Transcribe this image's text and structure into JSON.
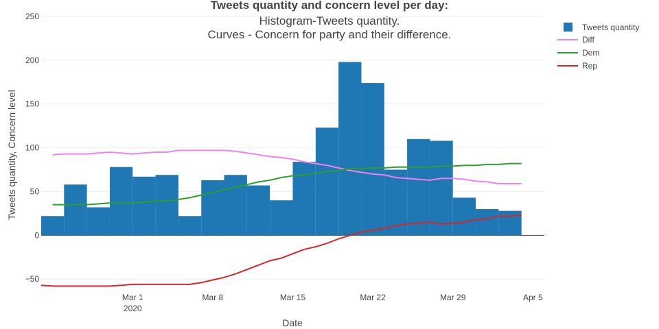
{
  "chart_data": {
    "type": "bar",
    "title_lines": [
      "Tweets quantity and concern level per day:",
      "Histogram-Tweets quantity.",
      "Curves - Concern for party and their difference."
    ],
    "xlabel": "Date",
    "ylabel": "Tweets quantity, Concern level",
    "ylim": [
      -60,
      250
    ],
    "yticks": [
      -50,
      0,
      50,
      100,
      150,
      200,
      250
    ],
    "ytick_labels": [
      "−50",
      "0",
      "50",
      "100",
      "150",
      "200",
      "250"
    ],
    "xlim": [
      "2020-02-22",
      "2020-04-06"
    ],
    "xticks": [
      {
        "date": "2020-03-01",
        "label": "Mar 1",
        "sublabel": "2020"
      },
      {
        "date": "2020-03-08",
        "label": "Mar 8",
        "sublabel": ""
      },
      {
        "date": "2020-03-15",
        "label": "Mar 15",
        "sublabel": ""
      },
      {
        "date": "2020-03-22",
        "label": "Mar 22",
        "sublabel": ""
      },
      {
        "date": "2020-03-29",
        "label": "Mar 29",
        "sublabel": ""
      },
      {
        "date": "2020-04-05",
        "label": "Apr 5",
        "sublabel": ""
      }
    ],
    "grid": true,
    "legend_position": "top-right",
    "histogram": {
      "name": "Tweets quantity",
      "color": "#1f77b4",
      "bins": [
        {
          "start": "2020-02-22",
          "end": "2020-02-24",
          "value": 22
        },
        {
          "start": "2020-02-24",
          "end": "2020-02-26",
          "value": 58
        },
        {
          "start": "2020-02-26",
          "end": "2020-02-28",
          "value": 32
        },
        {
          "start": "2020-02-28",
          "end": "2020-03-01",
          "value": 78
        },
        {
          "start": "2020-03-01",
          "end": "2020-03-03",
          "value": 67
        },
        {
          "start": "2020-03-03",
          "end": "2020-03-05",
          "value": 69
        },
        {
          "start": "2020-03-05",
          "end": "2020-03-07",
          "value": 22
        },
        {
          "start": "2020-03-07",
          "end": "2020-03-09",
          "value": 63
        },
        {
          "start": "2020-03-09",
          "end": "2020-03-11",
          "value": 69
        },
        {
          "start": "2020-03-11",
          "end": "2020-03-13",
          "value": 57
        },
        {
          "start": "2020-03-13",
          "end": "2020-03-15",
          "value": 40
        },
        {
          "start": "2020-03-15",
          "end": "2020-03-17",
          "value": 84
        },
        {
          "start": "2020-03-17",
          "end": "2020-03-19",
          "value": 123
        },
        {
          "start": "2020-03-19",
          "end": "2020-03-21",
          "value": 198
        },
        {
          "start": "2020-03-21",
          "end": "2020-03-23",
          "value": 174
        },
        {
          "start": "2020-03-23",
          "end": "2020-03-25",
          "value": 75
        },
        {
          "start": "2020-03-25",
          "end": "2020-03-27",
          "value": 110
        },
        {
          "start": "2020-03-27",
          "end": "2020-03-29",
          "value": 108
        },
        {
          "start": "2020-03-29",
          "end": "2020-03-31",
          "value": 43
        },
        {
          "start": "2020-03-31",
          "end": "2020-04-02",
          "value": 30
        },
        {
          "start": "2020-04-02",
          "end": "2020-04-04",
          "value": 28
        }
      ]
    },
    "series": [
      {
        "name": "Diff",
        "color": "#ee82ee",
        "points": [
          [
            "2020-02-23",
            92
          ],
          [
            "2020-02-24",
            93
          ],
          [
            "2020-02-25",
            93
          ],
          [
            "2020-02-26",
            93
          ],
          [
            "2020-02-27",
            94
          ],
          [
            "2020-02-28",
            95
          ],
          [
            "2020-02-29",
            94
          ],
          [
            "2020-03-01",
            93
          ],
          [
            "2020-03-02",
            94
          ],
          [
            "2020-03-03",
            95
          ],
          [
            "2020-03-04",
            95
          ],
          [
            "2020-03-05",
            97
          ],
          [
            "2020-03-06",
            97
          ],
          [
            "2020-03-07",
            97
          ],
          [
            "2020-03-08",
            97
          ],
          [
            "2020-03-09",
            97
          ],
          [
            "2020-03-10",
            96
          ],
          [
            "2020-03-11",
            94
          ],
          [
            "2020-03-12",
            92
          ],
          [
            "2020-03-13",
            90
          ],
          [
            "2020-03-14",
            89
          ],
          [
            "2020-03-15",
            87
          ],
          [
            "2020-03-16",
            84
          ],
          [
            "2020-03-17",
            82
          ],
          [
            "2020-03-18",
            80
          ],
          [
            "2020-03-19",
            77
          ],
          [
            "2020-03-20",
            74
          ],
          [
            "2020-03-21",
            72
          ],
          [
            "2020-03-22",
            70
          ],
          [
            "2020-03-23",
            69
          ],
          [
            "2020-03-24",
            66
          ],
          [
            "2020-03-25",
            65
          ],
          [
            "2020-03-26",
            64
          ],
          [
            "2020-03-27",
            63
          ],
          [
            "2020-03-28",
            65
          ],
          [
            "2020-03-29",
            65
          ],
          [
            "2020-03-30",
            64
          ],
          [
            "2020-03-31",
            62
          ],
          [
            "2020-04-01",
            61
          ],
          [
            "2020-04-02",
            59
          ],
          [
            "2020-04-03",
            59
          ],
          [
            "2020-04-04",
            59
          ]
        ]
      },
      {
        "name": "Dem",
        "color": "#2ca02c",
        "points": [
          [
            "2020-02-23",
            35
          ],
          [
            "2020-02-24",
            35
          ],
          [
            "2020-02-25",
            35
          ],
          [
            "2020-02-26",
            35
          ],
          [
            "2020-02-27",
            36
          ],
          [
            "2020-02-28",
            37
          ],
          [
            "2020-02-29",
            37
          ],
          [
            "2020-03-01",
            37
          ],
          [
            "2020-03-02",
            38
          ],
          [
            "2020-03-03",
            39
          ],
          [
            "2020-03-04",
            39
          ],
          [
            "2020-03-05",
            41
          ],
          [
            "2020-03-06",
            43
          ],
          [
            "2020-03-07",
            46
          ],
          [
            "2020-03-08",
            49
          ],
          [
            "2020-03-09",
            52
          ],
          [
            "2020-03-10",
            55
          ],
          [
            "2020-03-11",
            58
          ],
          [
            "2020-03-12",
            61
          ],
          [
            "2020-03-13",
            63
          ],
          [
            "2020-03-14",
            66
          ],
          [
            "2020-03-15",
            68
          ],
          [
            "2020-03-16",
            69
          ],
          [
            "2020-03-17",
            71
          ],
          [
            "2020-03-18",
            73
          ],
          [
            "2020-03-19",
            74
          ],
          [
            "2020-03-20",
            76
          ],
          [
            "2020-03-21",
            76
          ],
          [
            "2020-03-22",
            77
          ],
          [
            "2020-03-23",
            77
          ],
          [
            "2020-03-24",
            78
          ],
          [
            "2020-03-25",
            78
          ],
          [
            "2020-03-26",
            78
          ],
          [
            "2020-03-27",
            78
          ],
          [
            "2020-03-28",
            79
          ],
          [
            "2020-03-29",
            79
          ],
          [
            "2020-03-30",
            80
          ],
          [
            "2020-03-31",
            80
          ],
          [
            "2020-04-01",
            81
          ],
          [
            "2020-04-02",
            81
          ],
          [
            "2020-04-03",
            82
          ],
          [
            "2020-04-04",
            82
          ]
        ]
      },
      {
        "name": "Rep",
        "color": "#d62728",
        "points": [
          [
            "2020-02-22",
            -57
          ],
          [
            "2020-02-23",
            -58
          ],
          [
            "2020-02-24",
            -58
          ],
          [
            "2020-02-25",
            -58
          ],
          [
            "2020-02-26",
            -58
          ],
          [
            "2020-02-27",
            -58
          ],
          [
            "2020-02-28",
            -58
          ],
          [
            "2020-02-29",
            -57
          ],
          [
            "2020-03-01",
            -56
          ],
          [
            "2020-03-02",
            -56
          ],
          [
            "2020-03-03",
            -56
          ],
          [
            "2020-03-04",
            -56
          ],
          [
            "2020-03-05",
            -56
          ],
          [
            "2020-03-06",
            -56
          ],
          [
            "2020-03-07",
            -54
          ],
          [
            "2020-03-08",
            -51
          ],
          [
            "2020-03-09",
            -48
          ],
          [
            "2020-03-10",
            -44
          ],
          [
            "2020-03-11",
            -39
          ],
          [
            "2020-03-12",
            -34
          ],
          [
            "2020-03-13",
            -29
          ],
          [
            "2020-03-14",
            -26
          ],
          [
            "2020-03-15",
            -21
          ],
          [
            "2020-03-16",
            -16
          ],
          [
            "2020-03-17",
            -13
          ],
          [
            "2020-03-18",
            -9
          ],
          [
            "2020-03-19",
            -4
          ],
          [
            "2020-03-20",
            0
          ],
          [
            "2020-03-21",
            4
          ],
          [
            "2020-03-22",
            6
          ],
          [
            "2020-03-23",
            8
          ],
          [
            "2020-03-24",
            11
          ],
          [
            "2020-03-25",
            13
          ],
          [
            "2020-03-26",
            14
          ],
          [
            "2020-03-27",
            15
          ],
          [
            "2020-03-28",
            13
          ],
          [
            "2020-03-29",
            14
          ],
          [
            "2020-03-30",
            15
          ],
          [
            "2020-03-31",
            18
          ],
          [
            "2020-04-01",
            19
          ],
          [
            "2020-04-02",
            22
          ],
          [
            "2020-04-03",
            22
          ],
          [
            "2020-04-04",
            23
          ]
        ]
      }
    ],
    "legend": [
      "Tweets quantity",
      "Diff",
      "Dem",
      "Rep"
    ]
  }
}
